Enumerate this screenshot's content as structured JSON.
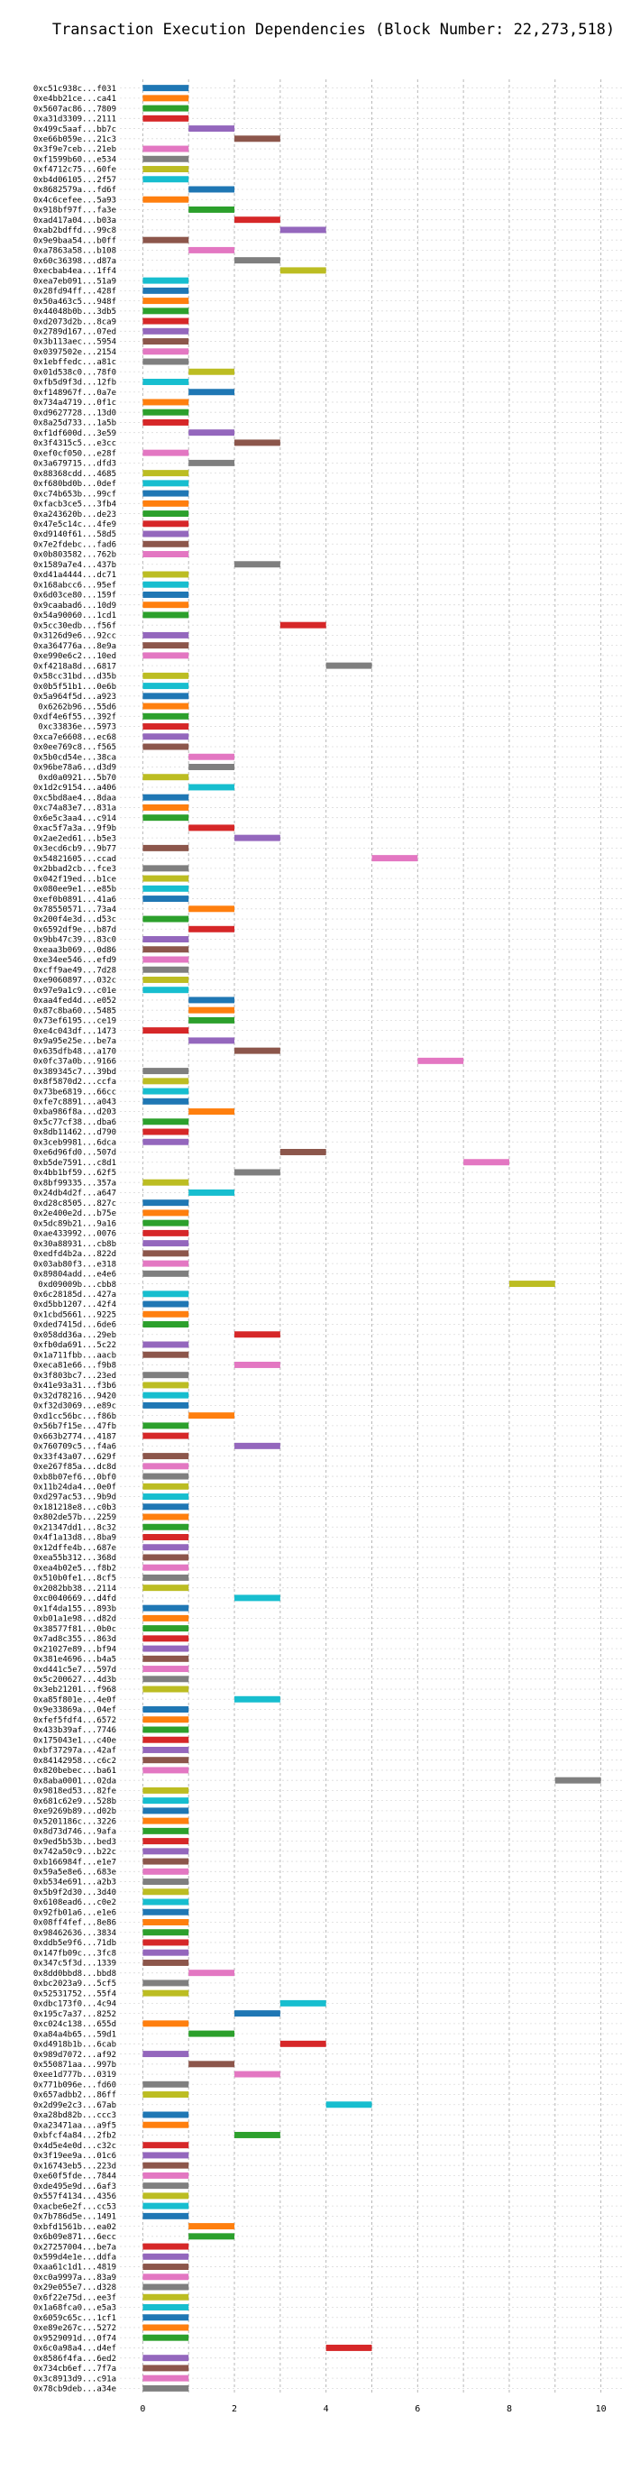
{
  "chart_data": {
    "type": "gantt",
    "title": "Transaction Execution Dependencies (Block Number: 22,273,518)",
    "xlabel": "",
    "ylabel": "",
    "xlim": [
      -0.5,
      10.5
    ],
    "xticks": [
      0,
      2,
      4,
      6,
      8,
      10
    ],
    "grid": true,
    "colors": [
      "#1f77b4",
      "#ff7f0e",
      "#2ca02c",
      "#d62728",
      "#9467bd",
      "#8c564b",
      "#e377c2",
      "#7f7f7f",
      "#bcbd22",
      "#17becf"
    ],
    "transactions": [
      {
        "label": "0xc51c938c...f031",
        "start": 0
      },
      {
        "label": "0xe4bb21ce...ca41",
        "start": 0
      },
      {
        "label": "0x5607ac86...7809",
        "start": 0
      },
      {
        "label": "0xa31d3309...2111",
        "start": 0
      },
      {
        "label": "0x499c5aaf...bb7c",
        "start": 1
      },
      {
        "label": "0xe66b059e...21c3",
        "start": 2
      },
      {
        "label": "0x3f9e7ceb...21eb",
        "start": 0
      },
      {
        "label": "0xf1599b60...e534",
        "start": 0
      },
      {
        "label": "0xf4712c75...60fe",
        "start": 0
      },
      {
        "label": "0xb4d06105...2f57",
        "start": 0
      },
      {
        "label": "0x8682579a...fd6f",
        "start": 1
      },
      {
        "label": "0x4c6cefee...5a93",
        "start": 0
      },
      {
        "label": "0x918bf97f...fa3e",
        "start": 1
      },
      {
        "label": "0xad417a04...b03a",
        "start": 2
      },
      {
        "label": "0xab2bdffd...99c8",
        "start": 3
      },
      {
        "label": "0x9e9baa54...b0ff",
        "start": 0
      },
      {
        "label": "0xa7863a58...b108",
        "start": 1
      },
      {
        "label": "0x60c36398...d87a",
        "start": 2
      },
      {
        "label": "0xecbab4ea...1ff4",
        "start": 3
      },
      {
        "label": "0xea7eb091...51a9",
        "start": 0
      },
      {
        "label": "0x28fd94ff...428f",
        "start": 0
      },
      {
        "label": "0x50a463c5...948f",
        "start": 0
      },
      {
        "label": "0x44048b0b...3db5",
        "start": 0
      },
      {
        "label": "0xd2073d2b...8ca9",
        "start": 0
      },
      {
        "label": "0x2789d167...07ed",
        "start": 0
      },
      {
        "label": "0x3b113aec...5954",
        "start": 0
      },
      {
        "label": "0x0397502e...2154",
        "start": 0
      },
      {
        "label": "0x1ebffedc...a81c",
        "start": 0
      },
      {
        "label": "0x01d538c0...78f0",
        "start": 1
      },
      {
        "label": "0xfb5d9f3d...12fb",
        "start": 0
      },
      {
        "label": "0xf148967f...0a7e",
        "start": 1
      },
      {
        "label": "0x734a4719...0f1c",
        "start": 0
      },
      {
        "label": "0xd9627728...13d0",
        "start": 0
      },
      {
        "label": "0x8a25d733...1a5b",
        "start": 0
      },
      {
        "label": "0xf1df600d...3e59",
        "start": 1
      },
      {
        "label": "0x3f4315c5...e3cc",
        "start": 2
      },
      {
        "label": "0xef0cf050...e28f",
        "start": 0
      },
      {
        "label": "0x3a679715...dfd3",
        "start": 1
      },
      {
        "label": "0x88368cdd...4685",
        "start": 0
      },
      {
        "label": "0xf680bd0b...0def",
        "start": 0
      },
      {
        "label": "0xc74b653b...99cf",
        "start": 0
      },
      {
        "label": "0xfacb3ce5...3fb4",
        "start": 0
      },
      {
        "label": "0xa243620b...de23",
        "start": 0
      },
      {
        "label": "0x47e5c14c...4fe9",
        "start": 0
      },
      {
        "label": "0xd9140f61...58d5",
        "start": 0
      },
      {
        "label": "0x7e2fdebc...fad6",
        "start": 0
      },
      {
        "label": "0x0b803582...762b",
        "start": 0
      },
      {
        "label": "0x1589a7e4...437b",
        "start": 2
      },
      {
        "label": "0xd41a4444...dc71",
        "start": 0
      },
      {
        "label": "0x168abcc6...95ef",
        "start": 0
      },
      {
        "label": "0x6d03ce80...159f",
        "start": 0
      },
      {
        "label": "0x9caabad6...10d9",
        "start": 0
      },
      {
        "label": "0x54a90060...1cd1",
        "start": 0
      },
      {
        "label": "0x5cc30edb...f56f",
        "start": 3
      },
      {
        "label": "0x3126d9e6...92cc",
        "start": 0
      },
      {
        "label": "0xa364776a...8e9a",
        "start": 0
      },
      {
        "label": "0xe990e6c2...10ed",
        "start": 0
      },
      {
        "label": "0xf4218a8d...6817",
        "start": 4
      },
      {
        "label": "0x58cc31bd...d35b",
        "start": 0
      },
      {
        "label": "0x0b5f51b1...0e6b",
        "start": 0
      },
      {
        "label": "0x5a964f5d...a923",
        "start": 0
      },
      {
        "label": "0x6262b96...55d6",
        "start": 0
      },
      {
        "label": "0xdf4e6f55...392f",
        "start": 0
      },
      {
        "label": "0xc33836e...5973",
        "start": 0
      },
      {
        "label": "0xca7e6608...ec68",
        "start": 0
      },
      {
        "label": "0x0ee769c8...f565",
        "start": 0
      },
      {
        "label": "0x5b0cd54e...38ca",
        "start": 1
      },
      {
        "label": "0x96be78a6...d3d9",
        "start": 1
      },
      {
        "label": "0xd0a0921...5b70",
        "start": 0
      },
      {
        "label": "0x1d2c9154...a406",
        "start": 1
      },
      {
        "label": "0xc5bd8ae4...8daa",
        "start": 0
      },
      {
        "label": "0xc74a83e7...831a",
        "start": 0
      },
      {
        "label": "0x6e5c3aa4...c914",
        "start": 0
      },
      {
        "label": "0xac5f7a3a...9f9b",
        "start": 1
      },
      {
        "label": "0x2ae2ed61...b5e3",
        "start": 2
      },
      {
        "label": "0x3ecd6cb9...9b77",
        "start": 0
      },
      {
        "label": "0x54821605...ccad",
        "start": 5
      },
      {
        "label": "0x2bbad2cb...fce3",
        "start": 0
      },
      {
        "label": "0x042f19ed...b1ce",
        "start": 0
      },
      {
        "label": "0x080ee9e1...e85b",
        "start": 0
      },
      {
        "label": "0xef0b0891...41a6",
        "start": 0
      },
      {
        "label": "0x78550571...73a4",
        "start": 1
      },
      {
        "label": "0x200f4e3d...d53c",
        "start": 0
      },
      {
        "label": "0x6592df9e...b87d",
        "start": 1
      },
      {
        "label": "0x9bb47c39...83c0",
        "start": 0
      },
      {
        "label": "0xeaa3b069...0d86",
        "start": 0
      },
      {
        "label": "0xe34ee546...efd9",
        "start": 0
      },
      {
        "label": "0xcff9ae49...7d28",
        "start": 0
      },
      {
        "label": "0xe9060897...032c",
        "start": 0
      },
      {
        "label": "0x97e9a1c9...c01e",
        "start": 0
      },
      {
        "label": "0xaa4fed4d...e052",
        "start": 1
      },
      {
        "label": "0x87c8ba60...5485",
        "start": 1
      },
      {
        "label": "0x73ef6195...ce19",
        "start": 1
      },
      {
        "label": "0xe4c043df...1473",
        "start": 0
      },
      {
        "label": "0x9a95e25e...be7a",
        "start": 1
      },
      {
        "label": "0x635dfb48...a170",
        "start": 2
      },
      {
        "label": "0x0fc37a0b...9166",
        "start": 6
      },
      {
        "label": "0x389345c7...39bd",
        "start": 0
      },
      {
        "label": "0x8f5870d2...ccfa",
        "start": 0
      },
      {
        "label": "0x73be6819...66cc",
        "start": 0
      },
      {
        "label": "0xfe7c8891...a043",
        "start": 0
      },
      {
        "label": "0xba986f8a...d203",
        "start": 1
      },
      {
        "label": "0x5c77cf38...dba6",
        "start": 0
      },
      {
        "label": "0x8db11462...d790",
        "start": 0
      },
      {
        "label": "0x3ceb9981...6dca",
        "start": 0
      },
      {
        "label": "0xe6d96fd0...507d",
        "start": 3
      },
      {
        "label": "0xb5de7591...c8d1",
        "start": 7
      },
      {
        "label": "0x4bb1bf59...62f5",
        "start": 2
      },
      {
        "label": "0x8bf99335...357a",
        "start": 0
      },
      {
        "label": "0x24db4d2f...a647",
        "start": 1
      },
      {
        "label": "0xd28c8505...827c",
        "start": 0
      },
      {
        "label": "0x2e400e2d...b75e",
        "start": 0
      },
      {
        "label": "0x5dc89b21...9a16",
        "start": 0
      },
      {
        "label": "0xae433992...0076",
        "start": 0
      },
      {
        "label": "0x30a88931...cb8b",
        "start": 0
      },
      {
        "label": "0xedfd4b2a...822d",
        "start": 0
      },
      {
        "label": "0x03ab80f3...e318",
        "start": 0
      },
      {
        "label": "0x89804add...e4e6",
        "start": 0
      },
      {
        "label": "0xd09009b...cbb8",
        "start": 8
      },
      {
        "label": "0x6c28185d...427a",
        "start": 0
      },
      {
        "label": "0xd5bb1207...42f4",
        "start": 0
      },
      {
        "label": "0x1cbd5661...9225",
        "start": 0
      },
      {
        "label": "0xded7415d...6de6",
        "start": 0
      },
      {
        "label": "0x058dd36a...29eb",
        "start": 2
      },
      {
        "label": "0xfb0da691...5c22",
        "start": 0
      },
      {
        "label": "0x1a711fbb...aacb",
        "start": 0
      },
      {
        "label": "0xeca81e66...f9b8",
        "start": 2
      },
      {
        "label": "0x3f803bc7...23ed",
        "start": 0
      },
      {
        "label": "0x41e93a31...f3b6",
        "start": 0
      },
      {
        "label": "0x32d78216...9420",
        "start": 0
      },
      {
        "label": "0xf32d3069...e89c",
        "start": 0
      },
      {
        "label": "0xd1cc56bc...f86b",
        "start": 1
      },
      {
        "label": "0x56b7f15e...47fb",
        "start": 0
      },
      {
        "label": "0x663b2774...4187",
        "start": 0
      },
      {
        "label": "0x760709c5...f4a6",
        "start": 2
      },
      {
        "label": "0x33f43a07...629f",
        "start": 0
      },
      {
        "label": "0xe267f85a...dc8d",
        "start": 0
      },
      {
        "label": "0xb8b07ef6...0bf0",
        "start": 0
      },
      {
        "label": "0x11b24da4...0e0f",
        "start": 0
      },
      {
        "label": "0xd297ac53...9b9d",
        "start": 0
      },
      {
        "label": "0x181218e8...c0b3",
        "start": 0
      },
      {
        "label": "0x802de57b...2259",
        "start": 0
      },
      {
        "label": "0x21347dd1...8c32",
        "start": 0
      },
      {
        "label": "0x4f1a13d8...8ba9",
        "start": 0
      },
      {
        "label": "0x12dffe4b...687e",
        "start": 0
      },
      {
        "label": "0xea55b312...368d",
        "start": 0
      },
      {
        "label": "0xea4b02e5...f8b2",
        "start": 0
      },
      {
        "label": "0x510b0fe1...8cf5",
        "start": 0
      },
      {
        "label": "0x2082bb38...2114",
        "start": 0
      },
      {
        "label": "0xc0040669...d4fd",
        "start": 2
      },
      {
        "label": "0x1f4da155...893b",
        "start": 0
      },
      {
        "label": "0xb01a1e98...d82d",
        "start": 0
      },
      {
        "label": "0x38577f81...0b0c",
        "start": 0
      },
      {
        "label": "0x7ad8c355...863d",
        "start": 0
      },
      {
        "label": "0x21027e89...bf94",
        "start": 0
      },
      {
        "label": "0x381e4696...b4a5",
        "start": 0
      },
      {
        "label": "0xd441c5e7...597d",
        "start": 0
      },
      {
        "label": "0x5c200627...4d3b",
        "start": 0
      },
      {
        "label": "0x3eb21201...f968",
        "start": 0
      },
      {
        "label": "0xa85f801e...4e0f",
        "start": 2
      },
      {
        "label": "0x9e33869a...04ef",
        "start": 0
      },
      {
        "label": "0xfef5fdf4...6572",
        "start": 0
      },
      {
        "label": "0x433b39af...7746",
        "start": 0
      },
      {
        "label": "0x175043e1...c40e",
        "start": 0
      },
      {
        "label": "0xbf37297a...42af",
        "start": 0
      },
      {
        "label": "0x84142958...c6c2",
        "start": 0
      },
      {
        "label": "0x820bebec...ba61",
        "start": 0
      },
      {
        "label": "0x8aba0001...02da",
        "start": 9
      },
      {
        "label": "0x9818ed53...82fe",
        "start": 0
      },
      {
        "label": "0x681c62e9...528b",
        "start": 0
      },
      {
        "label": "0xe9269b89...d02b",
        "start": 0
      },
      {
        "label": "0x5201186c...3226",
        "start": 0
      },
      {
        "label": "0x8d73d746...9afa",
        "start": 0
      },
      {
        "label": "0x9ed5b53b...bed3",
        "start": 0
      },
      {
        "label": "0x742a50c9...b22c",
        "start": 0
      },
      {
        "label": "0xb166984f...e1e7",
        "start": 0
      },
      {
        "label": "0x59a5e8e6...683e",
        "start": 0
      },
      {
        "label": "0xb534e691...a2b3",
        "start": 0
      },
      {
        "label": "0x5b9f2d30...3d40",
        "start": 0
      },
      {
        "label": "0x6108ead6...c0e2",
        "start": 0
      },
      {
        "label": "0x92fb01a6...e1e6",
        "start": 0
      },
      {
        "label": "0x08ff4fef...8e86",
        "start": 0
      },
      {
        "label": "0x98462636...3834",
        "start": 0
      },
      {
        "label": "0xddb5e9f6...71db",
        "start": 0
      },
      {
        "label": "0x147fb09c...3fc8",
        "start": 0
      },
      {
        "label": "0x347c5f3d...1339",
        "start": 0
      },
      {
        "label": "0x8dd0bbd8...bbd8",
        "start": 1
      },
      {
        "label": "0xbc2023a9...5cf5",
        "start": 0
      },
      {
        "label": "0x52531752...55f4",
        "start": 0
      },
      {
        "label": "0xdbc173f0...4c94",
        "start": 3
      },
      {
        "label": "0x195c7a37...8252",
        "start": 2
      },
      {
        "label": "0xc024c138...655d",
        "start": 0
      },
      {
        "label": "0xa84a4b65...59d1",
        "start": 1
      },
      {
        "label": "0xd4918b1b...6cab",
        "start": 3
      },
      {
        "label": "0x989d7072...af92",
        "start": 0
      },
      {
        "label": "0x550871aa...997b",
        "start": 1
      },
      {
        "label": "0xee1d777b...0319",
        "start": 2
      },
      {
        "label": "0x771b096e...fd60",
        "start": 0
      },
      {
        "label": "0x657adbb2...86ff",
        "start": 0
      },
      {
        "label": "0x2d99e2c3...67ab",
        "start": 4
      },
      {
        "label": "0xa28bd82b...ccc3",
        "start": 0
      },
      {
        "label": "0xa23471aa...a9f5",
        "start": 0
      },
      {
        "label": "0xbfcf4a84...2fb2",
        "start": 2
      },
      {
        "label": "0x4d5e4e0d...c32c",
        "start": 0
      },
      {
        "label": "0x3f19ee9a...01c6",
        "start": 0
      },
      {
        "label": "0x16743eb5...223d",
        "start": 0
      },
      {
        "label": "0xe60f5fde...7844",
        "start": 0
      },
      {
        "label": "0xde495e9d...6af3",
        "start": 0
      },
      {
        "label": "0x557f4134...4356",
        "start": 0
      },
      {
        "label": "0xacbe6e2f...cc53",
        "start": 0
      },
      {
        "label": "0x7b786d5e...1491",
        "start": 0
      },
      {
        "label": "0xbfd1561b...ea02",
        "start": 1
      },
      {
        "label": "0x6b09e871...6ecc",
        "start": 1
      },
      {
        "label": "0x27257004...be7a",
        "start": 0
      },
      {
        "label": "0x599d4e1e...ddfa",
        "start": 0
      },
      {
        "label": "0xaa61c1d1...4819",
        "start": 0
      },
      {
        "label": "0xc0a9997a...83a9",
        "start": 0
      },
      {
        "label": "0x29e055e7...d328",
        "start": 0
      },
      {
        "label": "0x6f22e75d...ee3f",
        "start": 0
      },
      {
        "label": "0x1a68fca0...e5a3",
        "start": 0
      },
      {
        "label": "0x6059c65c...1cf1",
        "start": 0
      },
      {
        "label": "0xe89e267c...5272",
        "start": 0
      },
      {
        "label": "0x9529091d...0f74",
        "start": 0
      },
      {
        "label": "0x6c0a98a4...d4ef",
        "start": 4
      },
      {
        "label": "0x8586f4fa...6ed2",
        "start": 0
      },
      {
        "label": "0x734cb6ef...7f7a",
        "start": 0
      },
      {
        "label": "0x3c8913d9...c91a",
        "start": 0
      },
      {
        "label": "0x78cb9deb...a34e",
        "start": 0
      }
    ]
  }
}
